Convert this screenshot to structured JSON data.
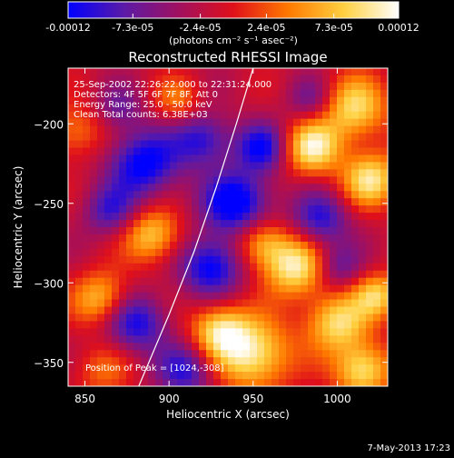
{
  "colorbar": {
    "ticks": [
      {
        "label": "-0.00012",
        "value": -0.00012
      },
      {
        "label": "-7.3e-05",
        "value": -7.3e-05
      },
      {
        "label": "-2.4e-05",
        "value": -2.4e-05
      },
      {
        "label": "2.4e-05",
        "value": 2.4e-05
      },
      {
        "label": "7.3e-05",
        "value": 7.3e-05
      },
      {
        "label": "0.00012",
        "value": 0.00012
      }
    ],
    "range": [
      -0.00012,
      0.00012
    ],
    "units": "(photons cm⁻² s⁻¹ asec⁻²)",
    "colors": [
      "#0000ff",
      "#5a1aa8",
      "#a01060",
      "#e0101a",
      "#ff7a00",
      "#ffd040",
      "#ffffff"
    ]
  },
  "chart_data": {
    "type": "heatmap",
    "title": "Reconstructed RHESSI Image",
    "xlabel": "Heliocentric X (arcsec)",
    "ylabel": "Heliocentric Y (arcsec)",
    "xlim": [
      840,
      1030
    ],
    "ylim": [
      -365,
      -165
    ],
    "x_ticks": [
      850,
      900,
      950,
      1000
    ],
    "y_ticks": [
      -200,
      -250,
      -300,
      -350
    ],
    "limb_curve": [
      [
        882,
        -365
      ],
      [
        900,
        -320
      ],
      [
        915,
        -280
      ],
      [
        928,
        -240
      ],
      [
        940,
        -200
      ],
      [
        950,
        -165
      ]
    ],
    "info_lines": [
      "25-Sep-2002 22:26:22.000 to 22:31:24.000",
      "Detectors: 4F 5F 6F 7F 8F, Att 0",
      "Energy Range: 25.0 - 50.0 keV",
      "Clean    Total counts: 6.38E+03"
    ],
    "peak_text": "Position of Peak = [1024,-308]",
    "blobs": [
      {
        "x": 1010,
        "y": -190,
        "v": 0.9,
        "r": 14
      },
      {
        "x": 985,
        "y": -215,
        "v": 1.0,
        "r": 12
      },
      {
        "x": 1020,
        "y": -235,
        "v": 0.95,
        "r": 12
      },
      {
        "x": 975,
        "y": -290,
        "v": 1.0,
        "r": 13
      },
      {
        "x": 1000,
        "y": -325,
        "v": 0.9,
        "r": 13
      },
      {
        "x": 950,
        "y": -345,
        "v": 1.0,
        "r": 16
      },
      {
        "x": 930,
        "y": -330,
        "v": 0.85,
        "r": 12
      },
      {
        "x": 1015,
        "y": -355,
        "v": 0.95,
        "r": 12
      },
      {
        "x": 890,
        "y": -270,
        "v": 0.8,
        "r": 12
      },
      {
        "x": 860,
        "y": -310,
        "v": 0.75,
        "r": 12
      },
      {
        "x": 955,
        "y": -275,
        "v": 0.7,
        "r": 11
      },
      {
        "x": 845,
        "y": -205,
        "v": 0.5,
        "r": 12
      },
      {
        "x": 905,
        "y": -185,
        "v": 0.45,
        "r": 10
      },
      {
        "x": 1024,
        "y": -308,
        "v": 0.8,
        "r": 10
      },
      {
        "x": 860,
        "y": -355,
        "v": 0.4,
        "r": 12
      },
      {
        "x": 885,
        "y": -225,
        "v": -0.9,
        "r": 15
      },
      {
        "x": 920,
        "y": -210,
        "v": -0.7,
        "r": 12
      },
      {
        "x": 940,
        "y": -250,
        "v": -1.0,
        "r": 14
      },
      {
        "x": 925,
        "y": -290,
        "v": -0.9,
        "r": 13
      },
      {
        "x": 865,
        "y": -255,
        "v": -0.6,
        "r": 11
      },
      {
        "x": 955,
        "y": -215,
        "v": -0.8,
        "r": 11
      },
      {
        "x": 990,
        "y": -260,
        "v": -0.7,
        "r": 12
      },
      {
        "x": 880,
        "y": -325,
        "v": -0.8,
        "r": 13
      },
      {
        "x": 910,
        "y": -355,
        "v": -0.7,
        "r": 12
      },
      {
        "x": 985,
        "y": -185,
        "v": -0.45,
        "r": 10
      },
      {
        "x": 1000,
        "y": -290,
        "v": -0.5,
        "r": 10
      },
      {
        "x": 870,
        "y": -190,
        "v": -0.4,
        "r": 10
      }
    ]
  },
  "footer": {
    "date": "7-May-2013 17:23"
  }
}
